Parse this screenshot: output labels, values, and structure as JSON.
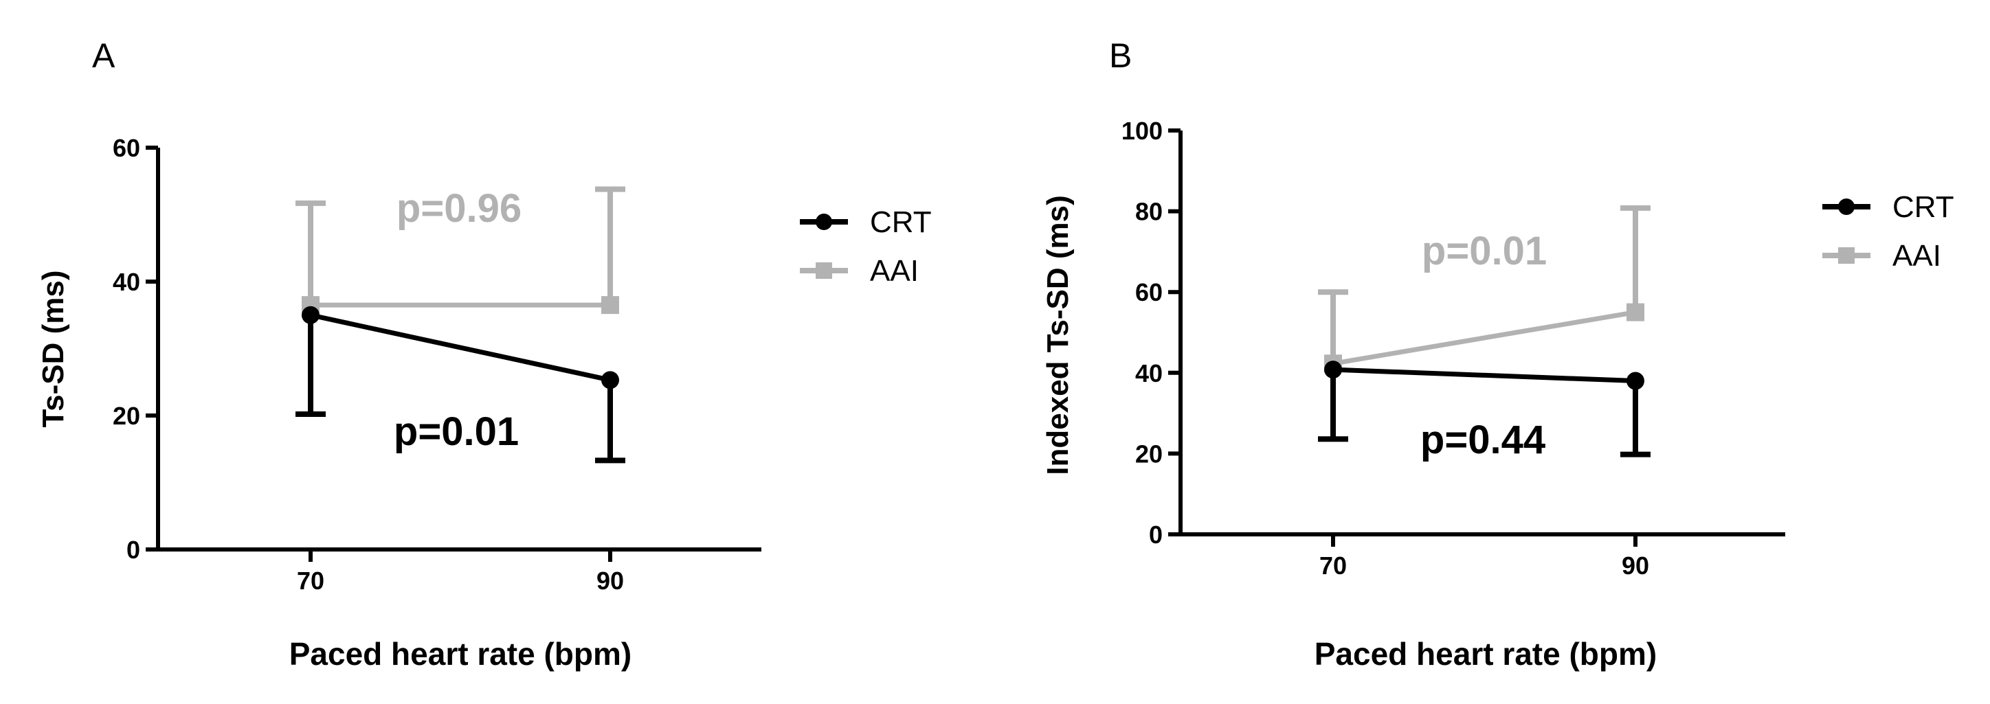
{
  "chart_data": [
    {
      "type": "line",
      "panel_label": "A",
      "xlabel": "Paced heart rate (bpm)",
      "ylabel": "Ts-SD (ms)",
      "x": [
        70,
        90
      ],
      "x_tick_labels": [
        "70",
        "90"
      ],
      "ylim": [
        0,
        60
      ],
      "y_ticks": [
        0,
        20,
        40,
        60
      ],
      "grid": false,
      "legend_position": "right",
      "series": [
        {
          "name": "CRT",
          "values": [
            35,
            25.3
          ],
          "error": [
            14.8,
            12
          ],
          "error_direction": "down",
          "marker": "circle",
          "color": "#000000"
        },
        {
          "name": "AAI",
          "values": [
            36.5,
            36.5
          ],
          "error": [
            15.2,
            17.3
          ],
          "error_direction": "up",
          "marker": "square",
          "color": "#b2b2b2"
        }
      ],
      "annotations": [
        {
          "text": "p=0.96",
          "series": "AAI",
          "color": "#b2b2b2"
        },
        {
          "text": "p=0.01",
          "series": "CRT",
          "color": "#000000"
        }
      ]
    },
    {
      "type": "line",
      "panel_label": "B",
      "xlabel": "Paced heart rate (bpm)",
      "ylabel": "Indexed Ts-SD (ms)",
      "x": [
        70,
        90
      ],
      "x_tick_labels": [
        "70",
        "90"
      ],
      "ylim": [
        0,
        100
      ],
      "y_ticks": [
        0,
        20,
        40,
        60,
        80,
        100
      ],
      "grid": false,
      "legend_position": "right",
      "series": [
        {
          "name": "CRT",
          "values": [
            40.8,
            38
          ],
          "error": [
            17.2,
            18.2
          ],
          "error_direction": "down",
          "marker": "circle",
          "color": "#000000"
        },
        {
          "name": "AAI",
          "values": [
            42.3,
            55
          ],
          "error": [
            17.7,
            25.8
          ],
          "error_direction": "up",
          "marker": "square",
          "color": "#b2b2b2"
        }
      ],
      "annotations": [
        {
          "text": "p=0.01",
          "series": "AAI",
          "color": "#b2b2b2"
        },
        {
          "text": "p=0.44",
          "series": "CRT",
          "color": "#000000"
        }
      ]
    }
  ]
}
